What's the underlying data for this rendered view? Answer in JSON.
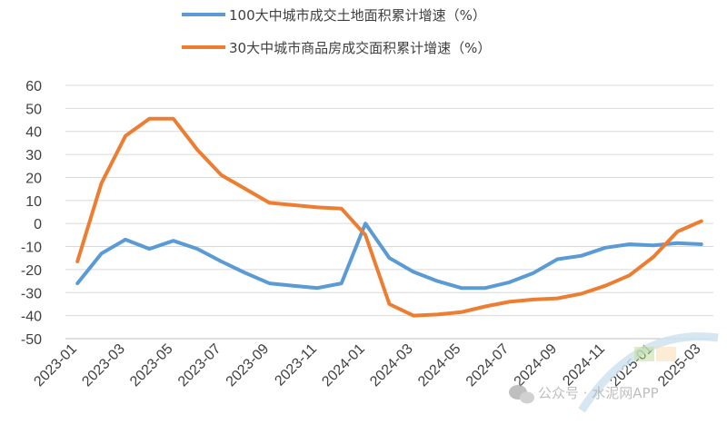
{
  "chart_data": {
    "type": "line",
    "title": "",
    "xlabel": "",
    "ylabel": "",
    "ylim": [
      -50,
      60
    ],
    "yticks": [
      -50,
      -40,
      -30,
      -20,
      -10,
      0,
      10,
      20,
      30,
      40,
      50,
      60
    ],
    "grid": true,
    "legend_position": "top-center",
    "x": [
      "2023-01",
      "2023-02",
      "2023-03",
      "2023-04",
      "2023-05",
      "2023-06",
      "2023-07",
      "2023-08",
      "2023-09",
      "2023-10",
      "2023-11",
      "2023-12",
      "2024-01",
      "2024-02",
      "2024-03",
      "2024-04",
      "2024-05",
      "2024-06",
      "2024-07",
      "2024-08",
      "2024-09",
      "2024-10",
      "2024-11",
      "2024-12",
      "2025-01",
      "2025-02",
      "2025-03"
    ],
    "xtick_labels": [
      "2023-01",
      "2023-03",
      "2023-05",
      "2023-07",
      "2023-09",
      "2023-11",
      "2024-01",
      "2024-03",
      "2024-05",
      "2024-07",
      "2024-09",
      "2024-11",
      "2025-01",
      "2025-03"
    ],
    "series": [
      {
        "name": "100大中城市成交土地面积累计增速（%）",
        "color": "#5b9bd5",
        "values": [
          -26,
          -13,
          -7,
          -11,
          -7.5,
          -11,
          -16.5,
          -21.5,
          -26,
          -27,
          -28,
          -26,
          0,
          -15,
          -21,
          -25,
          -28,
          -28,
          -25.5,
          -21.5,
          -15.5,
          -14,
          -10.5,
          -9,
          -9.5,
          -8.5,
          -9
        ]
      },
      {
        "name": "30大中城市商品房成交面积累计增速（%）",
        "color": "#ed7d31",
        "values": [
          -16.5,
          17.5,
          38,
          45.5,
          45.5,
          32,
          21,
          15,
          9,
          8,
          7,
          6.5,
          -5,
          -35,
          -40,
          -39.5,
          -38.5,
          -36,
          -34,
          -33,
          -32.5,
          -30.5,
          -27,
          -22.5,
          -14.5,
          -3.5,
          1
        ]
      }
    ]
  },
  "watermark": {
    "text": "公众号 · 水泥网APP",
    "icon": "wechat-icon"
  }
}
